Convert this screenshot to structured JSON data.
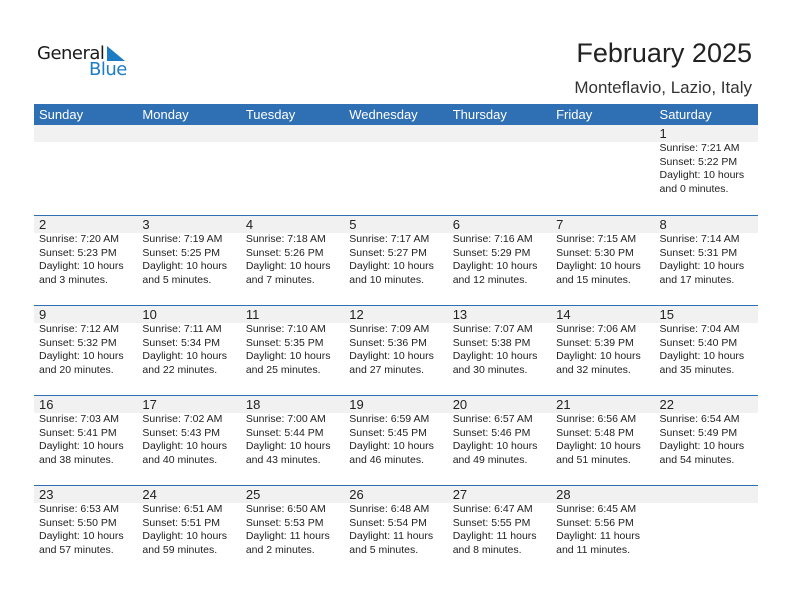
{
  "logo": {
    "text1": "General",
    "text2": "Blue"
  },
  "title": "February 2025",
  "location": "Monteflavio, Lazio, Italy",
  "days": [
    "Sunday",
    "Monday",
    "Tuesday",
    "Wednesday",
    "Thursday",
    "Friday",
    "Saturday"
  ],
  "colors": {
    "header": "#2f70b4",
    "band": "#f1f1f1",
    "logo_blue": "#1d7cc4"
  },
  "weeks": [
    [
      null,
      null,
      null,
      null,
      null,
      null,
      {
        "d": "1",
        "sr": "Sunrise: 7:21 AM",
        "ss": "Sunset: 5:22 PM",
        "dl": "Daylight: 10 hours",
        "dm": "and 0 minutes."
      }
    ],
    [
      {
        "d": "2",
        "sr": "Sunrise: 7:20 AM",
        "ss": "Sunset: 5:23 PM",
        "dl": "Daylight: 10 hours",
        "dm": "and 3 minutes."
      },
      {
        "d": "3",
        "sr": "Sunrise: 7:19 AM",
        "ss": "Sunset: 5:25 PM",
        "dl": "Daylight: 10 hours",
        "dm": "and 5 minutes."
      },
      {
        "d": "4",
        "sr": "Sunrise: 7:18 AM",
        "ss": "Sunset: 5:26 PM",
        "dl": "Daylight: 10 hours",
        "dm": "and 7 minutes."
      },
      {
        "d": "5",
        "sr": "Sunrise: 7:17 AM",
        "ss": "Sunset: 5:27 PM",
        "dl": "Daylight: 10 hours",
        "dm": "and 10 minutes."
      },
      {
        "d": "6",
        "sr": "Sunrise: 7:16 AM",
        "ss": "Sunset: 5:29 PM",
        "dl": "Daylight: 10 hours",
        "dm": "and 12 minutes."
      },
      {
        "d": "7",
        "sr": "Sunrise: 7:15 AM",
        "ss": "Sunset: 5:30 PM",
        "dl": "Daylight: 10 hours",
        "dm": "and 15 minutes."
      },
      {
        "d": "8",
        "sr": "Sunrise: 7:14 AM",
        "ss": "Sunset: 5:31 PM",
        "dl": "Daylight: 10 hours",
        "dm": "and 17 minutes."
      }
    ],
    [
      {
        "d": "9",
        "sr": "Sunrise: 7:12 AM",
        "ss": "Sunset: 5:32 PM",
        "dl": "Daylight: 10 hours",
        "dm": "and 20 minutes."
      },
      {
        "d": "10",
        "sr": "Sunrise: 7:11 AM",
        "ss": "Sunset: 5:34 PM",
        "dl": "Daylight: 10 hours",
        "dm": "and 22 minutes."
      },
      {
        "d": "11",
        "sr": "Sunrise: 7:10 AM",
        "ss": "Sunset: 5:35 PM",
        "dl": "Daylight: 10 hours",
        "dm": "and 25 minutes."
      },
      {
        "d": "12",
        "sr": "Sunrise: 7:09 AM",
        "ss": "Sunset: 5:36 PM",
        "dl": "Daylight: 10 hours",
        "dm": "and 27 minutes."
      },
      {
        "d": "13",
        "sr": "Sunrise: 7:07 AM",
        "ss": "Sunset: 5:38 PM",
        "dl": "Daylight: 10 hours",
        "dm": "and 30 minutes."
      },
      {
        "d": "14",
        "sr": "Sunrise: 7:06 AM",
        "ss": "Sunset: 5:39 PM",
        "dl": "Daylight: 10 hours",
        "dm": "and 32 minutes."
      },
      {
        "d": "15",
        "sr": "Sunrise: 7:04 AM",
        "ss": "Sunset: 5:40 PM",
        "dl": "Daylight: 10 hours",
        "dm": "and 35 minutes."
      }
    ],
    [
      {
        "d": "16",
        "sr": "Sunrise: 7:03 AM",
        "ss": "Sunset: 5:41 PM",
        "dl": "Daylight: 10 hours",
        "dm": "and 38 minutes."
      },
      {
        "d": "17",
        "sr": "Sunrise: 7:02 AM",
        "ss": "Sunset: 5:43 PM",
        "dl": "Daylight: 10 hours",
        "dm": "and 40 minutes."
      },
      {
        "d": "18",
        "sr": "Sunrise: 7:00 AM",
        "ss": "Sunset: 5:44 PM",
        "dl": "Daylight: 10 hours",
        "dm": "and 43 minutes."
      },
      {
        "d": "19",
        "sr": "Sunrise: 6:59 AM",
        "ss": "Sunset: 5:45 PM",
        "dl": "Daylight: 10 hours",
        "dm": "and 46 minutes."
      },
      {
        "d": "20",
        "sr": "Sunrise: 6:57 AM",
        "ss": "Sunset: 5:46 PM",
        "dl": "Daylight: 10 hours",
        "dm": "and 49 minutes."
      },
      {
        "d": "21",
        "sr": "Sunrise: 6:56 AM",
        "ss": "Sunset: 5:48 PM",
        "dl": "Daylight: 10 hours",
        "dm": "and 51 minutes."
      },
      {
        "d": "22",
        "sr": "Sunrise: 6:54 AM",
        "ss": "Sunset: 5:49 PM",
        "dl": "Daylight: 10 hours",
        "dm": "and 54 minutes."
      }
    ],
    [
      {
        "d": "23",
        "sr": "Sunrise: 6:53 AM",
        "ss": "Sunset: 5:50 PM",
        "dl": "Daylight: 10 hours",
        "dm": "and 57 minutes."
      },
      {
        "d": "24",
        "sr": "Sunrise: 6:51 AM",
        "ss": "Sunset: 5:51 PM",
        "dl": "Daylight: 10 hours",
        "dm": "and 59 minutes."
      },
      {
        "d": "25",
        "sr": "Sunrise: 6:50 AM",
        "ss": "Sunset: 5:53 PM",
        "dl": "Daylight: 11 hours",
        "dm": "and 2 minutes."
      },
      {
        "d": "26",
        "sr": "Sunrise: 6:48 AM",
        "ss": "Sunset: 5:54 PM",
        "dl": "Daylight: 11 hours",
        "dm": "and 5 minutes."
      },
      {
        "d": "27",
        "sr": "Sunrise: 6:47 AM",
        "ss": "Sunset: 5:55 PM",
        "dl": "Daylight: 11 hours",
        "dm": "and 8 minutes."
      },
      {
        "d": "28",
        "sr": "Sunrise: 6:45 AM",
        "ss": "Sunset: 5:56 PM",
        "dl": "Daylight: 11 hours",
        "dm": "and 11 minutes."
      },
      null
    ]
  ]
}
